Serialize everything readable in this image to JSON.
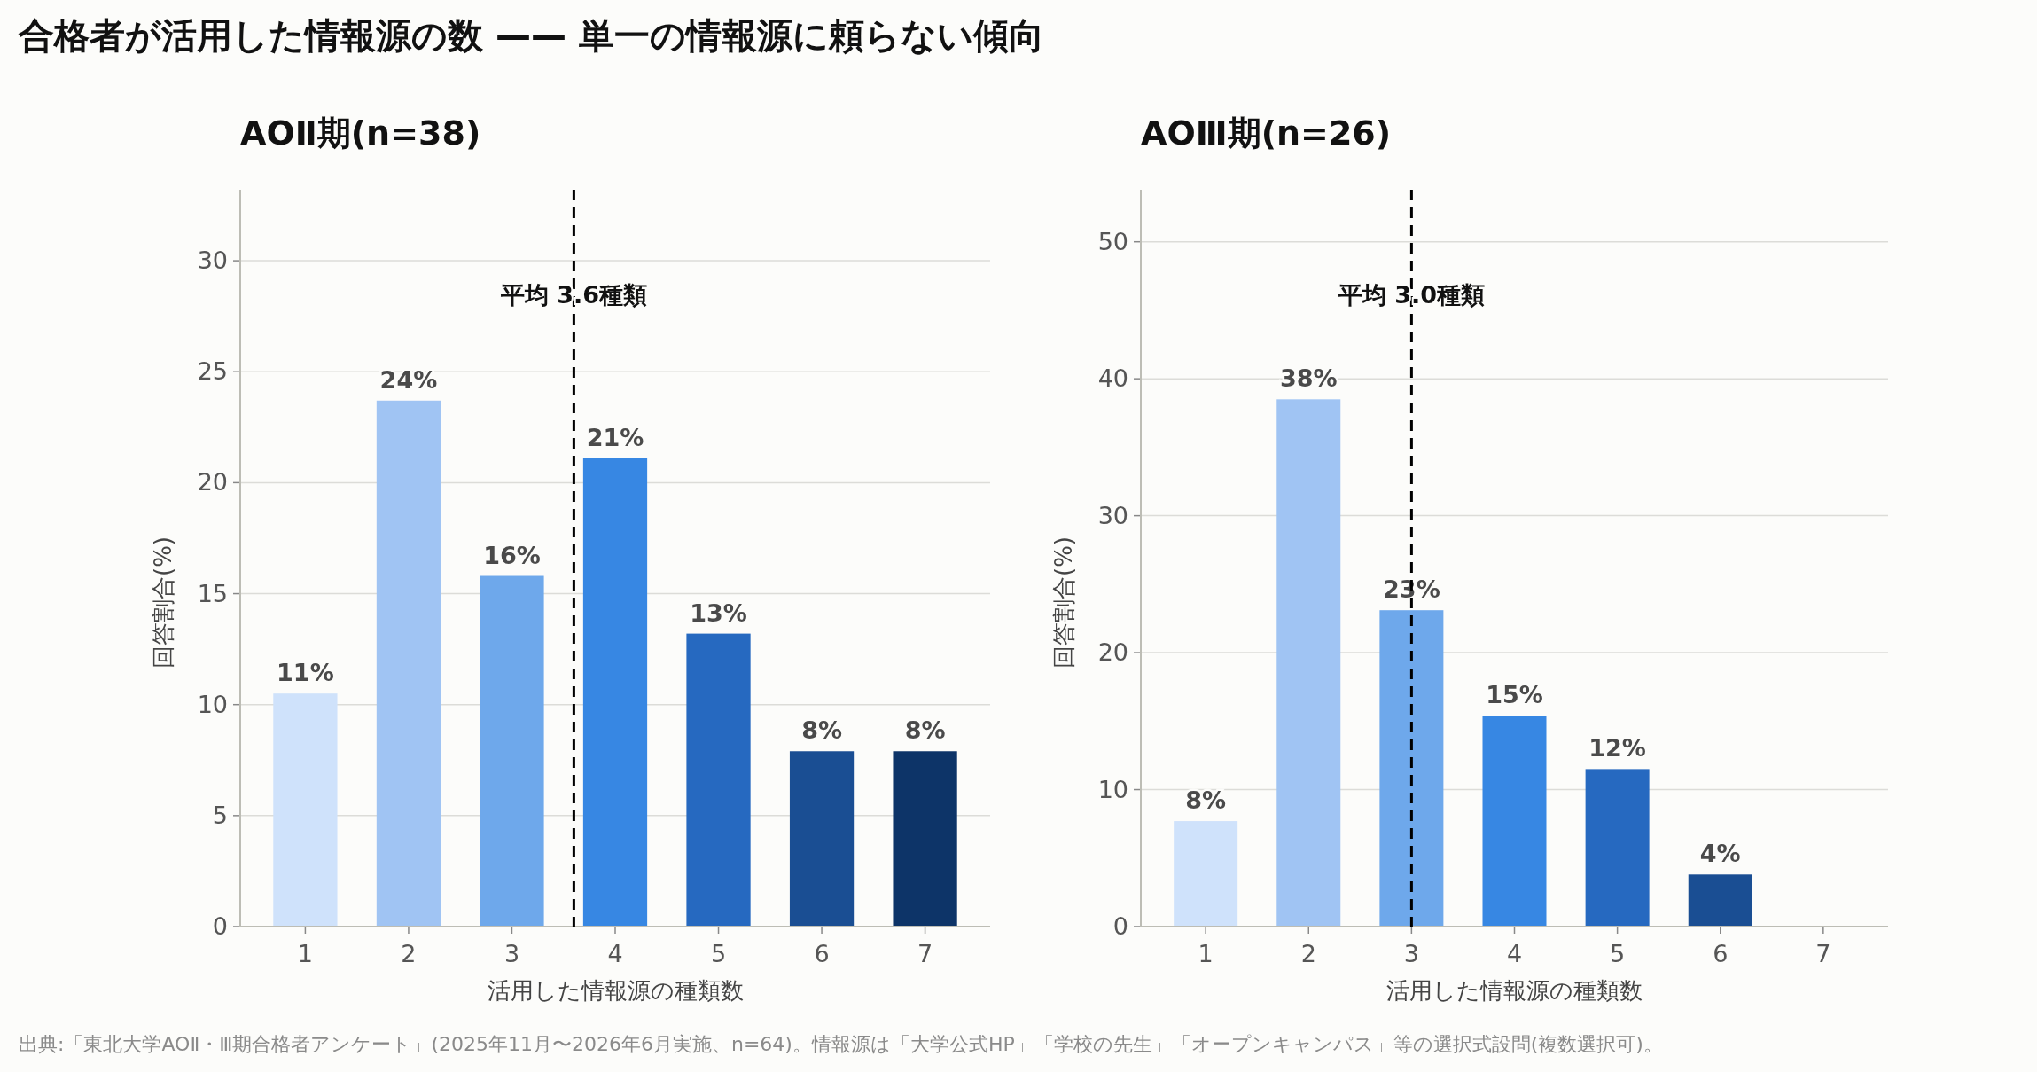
{
  "chart_data": [
    {
      "type": "bar",
      "title": "合格者が活用した情報源の数 —— 単一の情報源に頼らない傾向",
      "subtitle": "AOⅡ期(n=38)",
      "xlabel": "活用した情報源の種類数",
      "ylabel": "回答割合(%)",
      "x": [
        1,
        2,
        3,
        4,
        5,
        6,
        7
      ],
      "values": [
        10.5,
        23.7,
        15.8,
        21.1,
        13.2,
        7.9,
        7.9
      ],
      "colors": [
        "#cfe2fb",
        "#a0c4f3",
        "#6ea8eb",
        "#3787e3",
        "#2669c0",
        "#1a4e93",
        "#0d3468"
      ],
      "value_labels": [
        "11%",
        "24%",
        "16%",
        "21%",
        "13%",
        "8%",
        "8%"
      ],
      "xlim": [
        0.37,
        7.63
      ],
      "xticks": [
        1,
        2,
        3,
        4,
        5,
        6,
        7
      ],
      "ylim": [
        0,
        33.2
      ],
      "yticks": [
        0,
        5,
        10,
        15,
        20,
        25,
        30
      ],
      "grid": "y",
      "ref_lines": [
        {
          "axis": "x",
          "value": 3.6,
          "label": "平均 3.6種類",
          "color": "#000000",
          "line_style": "dashed"
        }
      ]
    },
    {
      "type": "bar",
      "subtitle": "AOⅢ期(n=26)",
      "xlabel": "活用した情報源の種類数",
      "ylabel": "回答割合(%)",
      "x": [
        1,
        2,
        3,
        4,
        5,
        6,
        7
      ],
      "values": [
        7.7,
        38.5,
        23.1,
        15.4,
        11.5,
        3.8,
        0
      ],
      "colors": [
        "#cfe2fb",
        "#a0c4f3",
        "#6ea8eb",
        "#3787e3",
        "#2669c0",
        "#1a4e93",
        "#0d3468"
      ],
      "value_labels": [
        "8%",
        "38%",
        "23%",
        "15%",
        "12%",
        "4%",
        null
      ],
      "xlim": [
        0.37,
        7.63
      ],
      "xticks": [
        1,
        2,
        3,
        4,
        5,
        6,
        7
      ],
      "ylim": [
        0,
        53.8
      ],
      "yticks": [
        0,
        10,
        20,
        30,
        40,
        50
      ],
      "grid": "y",
      "ref_lines": [
        {
          "axis": "x",
          "value": 3.0,
          "label": "平均 3.0種類",
          "color": "#000000",
          "line_style": "dashed"
        }
      ],
      "annotations": [
        "出典:「東北大学AOⅡ・Ⅲ期合格者アンケート」(2025年11月〜2026年6月実施、n=64)。情報源は「大学公式HP」「学校の先生」「オープンキャンパス」等の選択式設問(複数選択可)。"
      ]
    }
  ]
}
